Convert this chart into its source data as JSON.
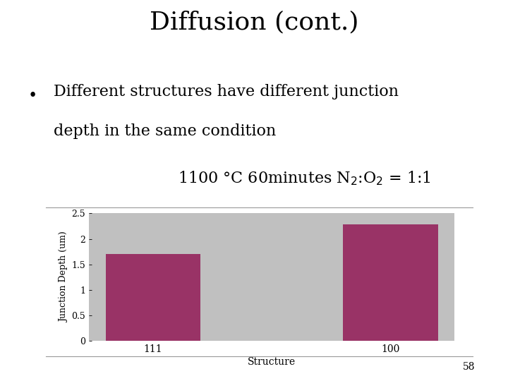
{
  "title": "Diffusion (cont.)",
  "bullet": "•",
  "bullet_line1": "Different structures have different junction",
  "bullet_line2": "depth in the same condition",
  "cond_line": "1100 °C 60minutes N$_2$:O$_2$ = 1:1",
  "categories": [
    "111",
    "100"
  ],
  "values": [
    1.7,
    2.28
  ],
  "bar_color": "#993366",
  "plot_bg_color": "#C0C0C0",
  "ylabel": "Junction Depth (um)",
  "xlabel": "Structure",
  "ylim": [
    0,
    2.5
  ],
  "yticks": [
    0,
    0.5,
    1,
    1.5,
    2,
    2.5
  ],
  "ytick_labels": [
    "0",
    "0.5",
    "1",
    "1.5",
    "2",
    "2.5"
  ],
  "page_number": "58",
  "bg_color": "#ffffff",
  "sep_color": "#999999"
}
